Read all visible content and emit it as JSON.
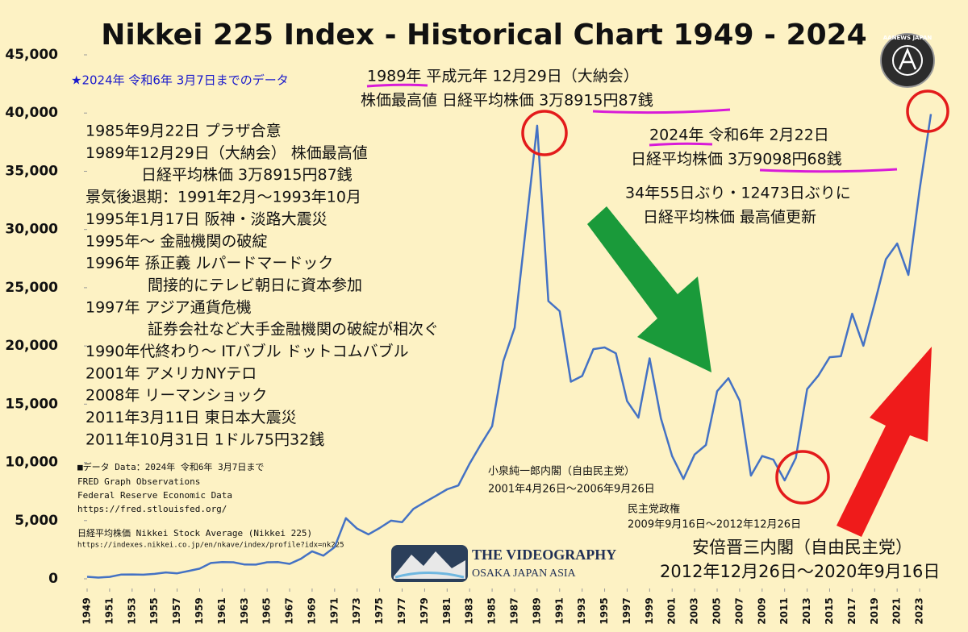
{
  "chart_data": {
    "type": "line",
    "title": "Nikkei 225 Index - Historical Chart 1949 - 2024",
    "color": "#4472c4",
    "grid": false,
    "x": [
      1949,
      1950,
      1951,
      1952,
      1953,
      1954,
      1955,
      1956,
      1957,
      1958,
      1959,
      1960,
      1961,
      1962,
      1963,
      1964,
      1965,
      1966,
      1967,
      1968,
      1969,
      1970,
      1971,
      1972,
      1973,
      1974,
      1975,
      1976,
      1977,
      1978,
      1979,
      1980,
      1981,
      1982,
      1983,
      1984,
      1985,
      1986,
      1987,
      1988,
      1989,
      1990,
      1991,
      1992,
      1993,
      1994,
      1995,
      1996,
      1997,
      1998,
      1999,
      2000,
      2001,
      2002,
      2003,
      2004,
      2005,
      2006,
      2007,
      2008,
      2009,
      2010,
      2011,
      2012,
      2013,
      2014,
      2015,
      2016,
      2017,
      2018,
      2019,
      2020,
      2021,
      2022,
      2023,
      2024
    ],
    "values": [
      176,
      102,
      166,
      362,
      377,
      356,
      425,
      549,
      474,
      666,
      874,
      1356,
      1432,
      1420,
      1225,
      1216,
      1417,
      1430,
      1283,
      1715,
      2358,
      1987,
      2714,
      5207,
      4307,
      3817,
      4359,
      4991,
      4866,
      6002,
      6570,
      7116,
      7682,
      8017,
      9894,
      11543,
      13113,
      18701,
      21564,
      30159,
      38916,
      23849,
      22984,
      16925,
      17417,
      19723,
      19868,
      19361,
      15259,
      13842,
      18934,
      13786,
      10543,
      8579,
      10677,
      11489,
      16111,
      17226,
      15308,
      8860,
      10546,
      10229,
      8455,
      10395,
      16291,
      17451,
      19034,
      19114,
      22765,
      20015,
      23657,
      27444,
      28792,
      26095,
      33464,
      39910
    ],
    "xlim": [
      1949,
      2024
    ],
    "xticks": [
      1949,
      1951,
      1953,
      1955,
      1957,
      1959,
      1961,
      1963,
      1965,
      1967,
      1969,
      1971,
      1973,
      1975,
      1977,
      1979,
      1981,
      1983,
      1985,
      1987,
      1989,
      1991,
      1993,
      1995,
      1997,
      1999,
      2001,
      2003,
      2005,
      2007,
      2009,
      2011,
      2013,
      2015,
      2017,
      2019,
      2021,
      2023
    ],
    "ylim": [
      0,
      45000
    ],
    "yticks": [
      0,
      {
        "value": 5000,
        "label": "5,000"
      },
      {
        "value": 10000,
        "label": "10,000"
      },
      {
        "value": 15000,
        "label": "15,000"
      },
      {
        "value": 20000,
        "label": "20,000"
      },
      {
        "value": 25000,
        "label": "25,000"
      },
      {
        "value": 30000,
        "label": "30,000"
      },
      {
        "value": 35000,
        "label": "35,000"
      },
      {
        "value": 40000,
        "label": "40,000"
      },
      {
        "value": 45000,
        "label": "45,000"
      }
    ],
    "annotations": {
      "data_note": "★2024年 令和6年 3月7日までのデータ",
      "peak_1989_line1": "1989年 平成元年 12月29日（大納会）",
      "peak_1989_line2": "株価最高値 日経平均株価 3万8915円87銭",
      "peak_2024_line1": "2024年 令和6年 2月22日",
      "peak_2024_line2": "日経平均株価 3万9098円68銭",
      "record_line1": "34年55日ぶり・12473日ぶりに",
      "record_line2": "日経平均株価 最高値更新",
      "events": [
        "1985年9月22日 プラザ合意",
        "1989年12月29日（大納会） 株価最高値",
        "日経平均株価 3万8915円87銭",
        "景気後退期：1991年2月～1993年10月",
        "1995年1月17日 阪神・淡路大震災",
        "1995年～ 金融機関の破綻",
        "1996年 孫正義 ルパードマードック",
        "間接的にテレビ朝日に資本参加",
        "1997年 アジア通貨危機",
        "証券会社など大手金融機関の破綻が相次ぐ",
        "1990年代終わり～ ITバブル ドットコムバブル",
        "2001年 アメリカNYテロ",
        "2008年 リーマンショック",
        "2011年3月11日 東日本大震災",
        "2011年10月31日 1ドル75円32銭"
      ],
      "sources": [
        "■データ Data：2024年 令和6年 3月7日まで",
        "FRED Graph Observations",
        "Federal Reserve Economic Data",
        "https://fred.stlouisfed.org/",
        "日経平均株価 Nikkei Stock Average (Nikkei 225)",
        "https://indexes.nikkei.co.jp/en/nkave/index/profile?idx=nk225"
      ],
      "koizumi_line1": "小泉純一郎内閣（自由民主党）",
      "koizumi_line2": "2001年4月26日～2006年9月26日",
      "dpj_line1": "民主党政権",
      "dpj_line2": "2009年9月16日～2012年12月26日",
      "abe_line1": "安倍晋三内閣（自由民主党）",
      "abe_line2": "2012年12月26日～2020年9月16日"
    },
    "logo": {
      "name": "THE VIDEOGRAPHY",
      "place": "OSAKA JAPAN ASIA",
      "badge": "AANEWS JAPAN"
    }
  }
}
